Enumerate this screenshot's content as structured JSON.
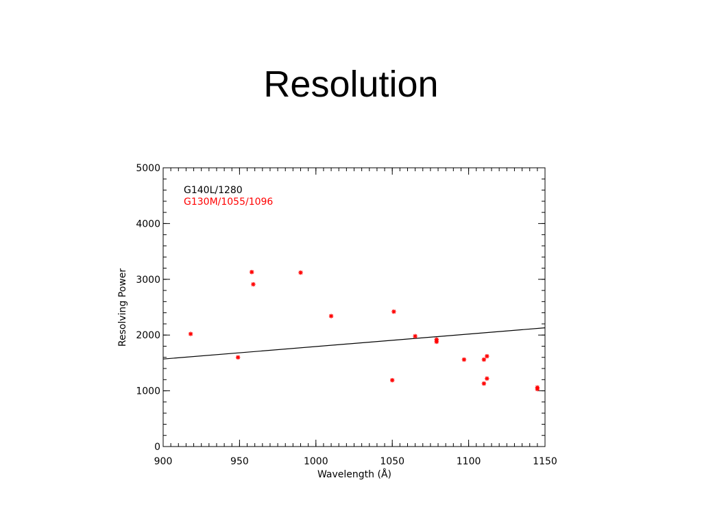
{
  "slide": {
    "title": "Resolution"
  },
  "chart_data": {
    "type": "scatter",
    "title": "",
    "xlabel": "Wavelength (Å)",
    "ylabel": "Resolving Power",
    "xlim": [
      900,
      1150
    ],
    "ylim": [
      0,
      5000
    ],
    "x_ticks": [
      900,
      950,
      1000,
      1050,
      1100,
      1150
    ],
    "y_ticks": [
      0,
      1000,
      2000,
      3000,
      4000,
      5000
    ],
    "grid": false,
    "legend_position": "top-left",
    "series": [
      {
        "name": "G140L/1280",
        "type": "line",
        "color": "#000000",
        "x": [
          900,
          1150
        ],
        "y": [
          1570,
          2130
        ]
      },
      {
        "name": "G130M/1055/1096",
        "type": "scatter",
        "marker": "asterisk",
        "color": "#ff0000",
        "x": [
          918,
          949,
          958,
          959,
          990,
          1010,
          1050,
          1051,
          1065,
          1079,
          1079,
          1097,
          1110,
          1110,
          1112,
          1112,
          1145,
          1145
        ],
        "y": [
          2020,
          1600,
          3130,
          2910,
          3120,
          2340,
          1190,
          2420,
          1980,
          1920,
          1880,
          1560,
          1560,
          1130,
          1620,
          1220,
          1060,
          1030
        ]
      }
    ]
  }
}
